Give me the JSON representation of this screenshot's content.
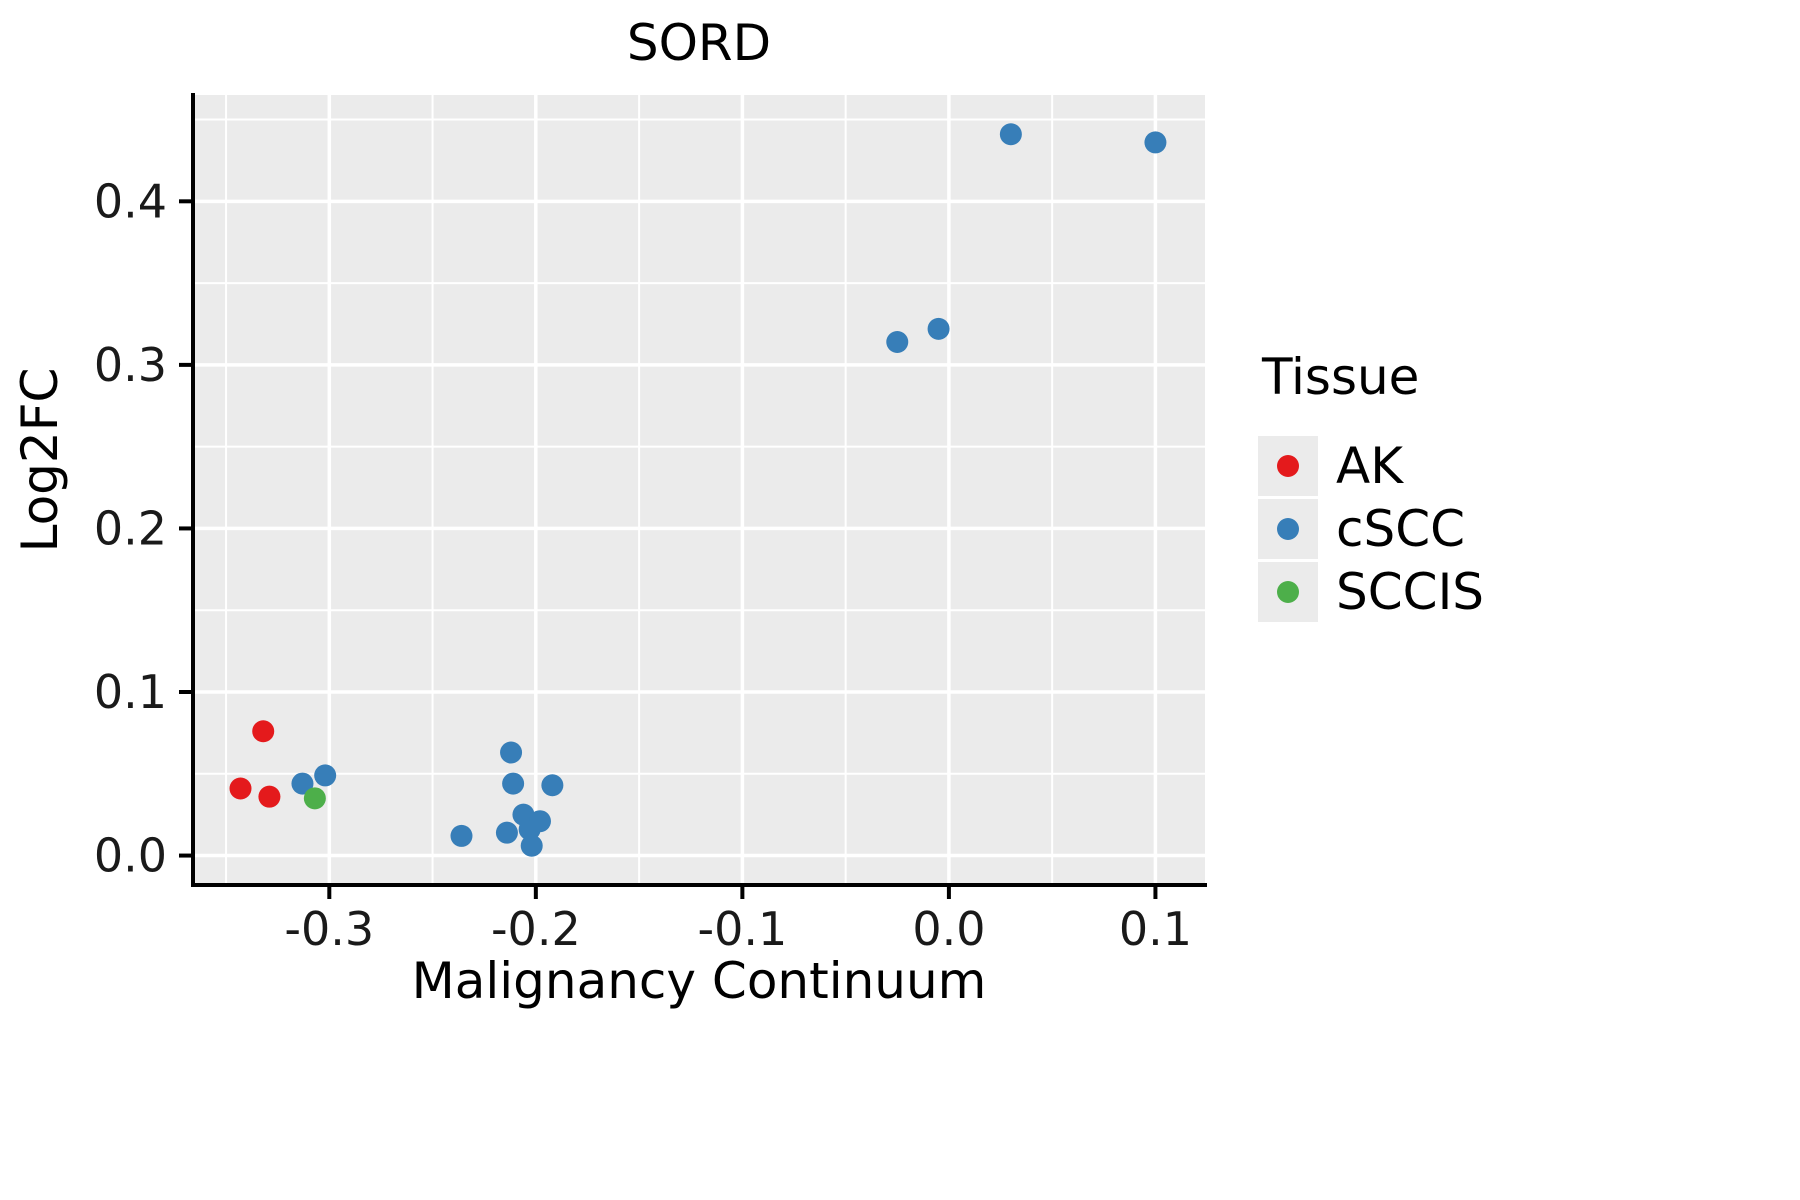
{
  "chart_data": {
    "type": "scatter",
    "title": "SORD",
    "xlabel": "Malignancy Continuum",
    "ylabel": "Log2FC",
    "xlim": [
      -0.366,
      0.124
    ],
    "ylim": [
      -0.018,
      0.465
    ],
    "x_ticks": [
      -0.3,
      -0.2,
      -0.1,
      0.0,
      0.1
    ],
    "x_tick_labels": [
      "-0.3",
      "-0.2",
      "-0.1",
      "0.0",
      "0.1"
    ],
    "y_ticks": [
      0.0,
      0.1,
      0.2,
      0.3,
      0.4
    ],
    "y_tick_labels": [
      "0.0",
      "0.1",
      "0.2",
      "0.3",
      "0.4"
    ],
    "grid": true,
    "panel_color": "#EBEBEB",
    "grid_color": "#FFFFFF",
    "axis_color": "#000000",
    "tick_label_color": "#1a1a1a",
    "legend": {
      "title": "Tissue",
      "position": "right",
      "entries": [
        {
          "label": "AK",
          "color": "#E41A1C"
        },
        {
          "label": "cSCC",
          "color": "#377EB8"
        },
        {
          "label": "SCCIS",
          "color": "#4DAF4A"
        }
      ]
    },
    "series": [
      {
        "name": "AK",
        "color": "#E41A1C",
        "points": [
          [
            -0.343,
            0.041
          ],
          [
            -0.332,
            0.076
          ],
          [
            -0.329,
            0.036
          ]
        ]
      },
      {
        "name": "cSCC",
        "color": "#377EB8",
        "points": [
          [
            -0.313,
            0.044
          ],
          [
            -0.302,
            0.049
          ],
          [
            -0.236,
            0.012
          ],
          [
            -0.212,
            0.063
          ],
          [
            -0.211,
            0.044
          ],
          [
            -0.214,
            0.014
          ],
          [
            -0.206,
            0.025
          ],
          [
            -0.203,
            0.016
          ],
          [
            -0.202,
            0.006
          ],
          [
            -0.198,
            0.021
          ],
          [
            -0.192,
            0.043
          ],
          [
            -0.025,
            0.314
          ],
          [
            -0.005,
            0.322
          ],
          [
            0.03,
            0.441
          ],
          [
            0.1,
            0.436
          ]
        ]
      },
      {
        "name": "SCCIS",
        "color": "#4DAF4A",
        "points": [
          [
            -0.307,
            0.035
          ]
        ]
      }
    ]
  }
}
